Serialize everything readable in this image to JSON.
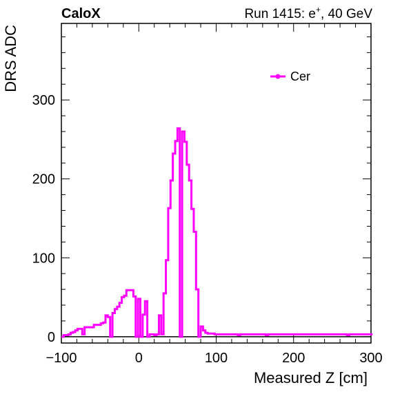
{
  "header": {
    "experiment": "CaloX",
    "run_label": "Run 1415: e",
    "run_superscript": "+",
    "run_energy": ", 40 GeV"
  },
  "chart_data": {
    "type": "line",
    "xlabel": "Measured Z [cm]",
    "ylabel": "DRS ADC",
    "xlim": [
      -100,
      300
    ],
    "ylim": [
      -8,
      397
    ],
    "x_ticks": [
      -100,
      0,
      100,
      200,
      300
    ],
    "y_ticks": [
      0,
      100,
      200,
      300
    ],
    "x_tick_labels": [
      "−100",
      "0",
      "100",
      "200",
      "300"
    ],
    "y_tick_labels": [
      "0",
      "100",
      "200",
      "300"
    ],
    "legend_position": "top-right",
    "grid": false,
    "series": [
      {
        "name": "Cer",
        "color": "#ff00ff",
        "style": "step",
        "bin_width": 3,
        "x_start": -100,
        "values": [
          0,
          2,
          2,
          3,
          5,
          6,
          8,
          10,
          10,
          3,
          12,
          12,
          12,
          12,
          15,
          15,
          15,
          17,
          18,
          27,
          25,
          0,
          30,
          35,
          38,
          43,
          50,
          52,
          59,
          59,
          59,
          51,
          0,
          48,
          0,
          28,
          45,
          0,
          3,
          3,
          2,
          3,
          27,
          3,
          55,
          97,
          163,
          198,
          232,
          248,
          264,
          0,
          260,
          247,
          218,
          198,
          162,
          133,
          60,
          0,
          13,
          8,
          5,
          4,
          4,
          4,
          3,
          3,
          3,
          3,
          3,
          3,
          3,
          3,
          3,
          3,
          2,
          3,
          3,
          3,
          3,
          3,
          3,
          3,
          3,
          3,
          3,
          3,
          2,
          3,
          3,
          3,
          3,
          3,
          3,
          3,
          3,
          3,
          3,
          3,
          3,
          3,
          3,
          3,
          3,
          3,
          3,
          3,
          3,
          3,
          3,
          3,
          3,
          3,
          3,
          3,
          3,
          3,
          3,
          3,
          3,
          3,
          3,
          2,
          3,
          3,
          3,
          3,
          3,
          3,
          3,
          3,
          3,
          3
        ]
      }
    ]
  }
}
